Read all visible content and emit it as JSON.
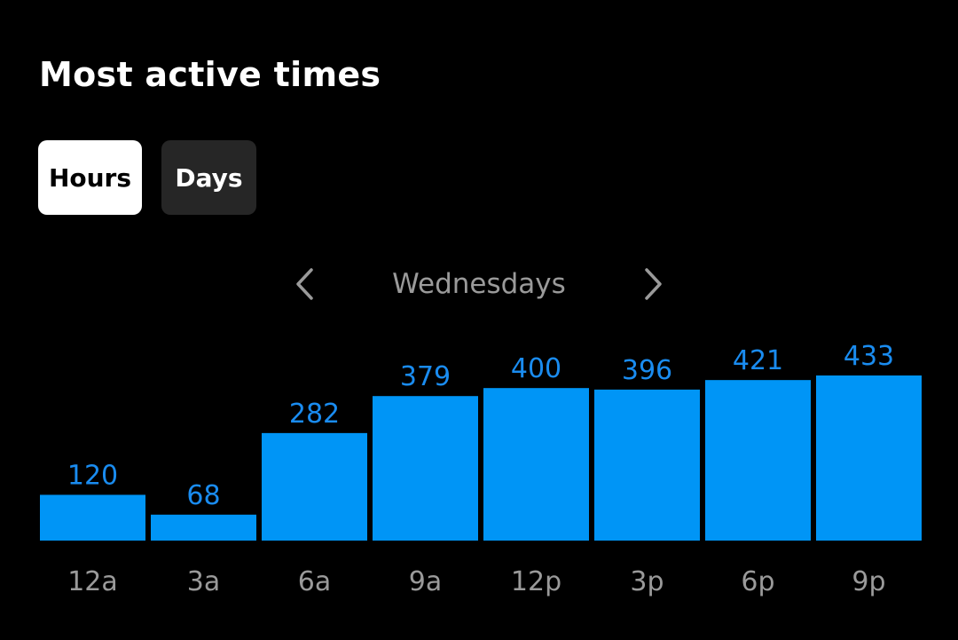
{
  "header": {
    "title": "Most active times"
  },
  "toggle": {
    "hours_label": "Hours",
    "days_label": "Days",
    "selected": "Hours"
  },
  "navigator": {
    "label": "Wednesdays",
    "prev_icon": "chevron-left-icon",
    "next_icon": "chevron-right-icon"
  },
  "colors": {
    "bar": "#0095f6",
    "value_label": "#1a8cf0",
    "tick_label": "#9a9a9a",
    "background": "#000000"
  },
  "chart_data": {
    "type": "bar",
    "categories": [
      "12a",
      "3a",
      "6a",
      "9a",
      "12p",
      "3p",
      "6p",
      "9p"
    ],
    "values": [
      120,
      68,
      282,
      379,
      400,
      396,
      421,
      433
    ],
    "title": "",
    "xlabel": "",
    "ylabel": "",
    "ylim": [
      0,
      433
    ],
    "grid": false,
    "data_labels": true
  }
}
